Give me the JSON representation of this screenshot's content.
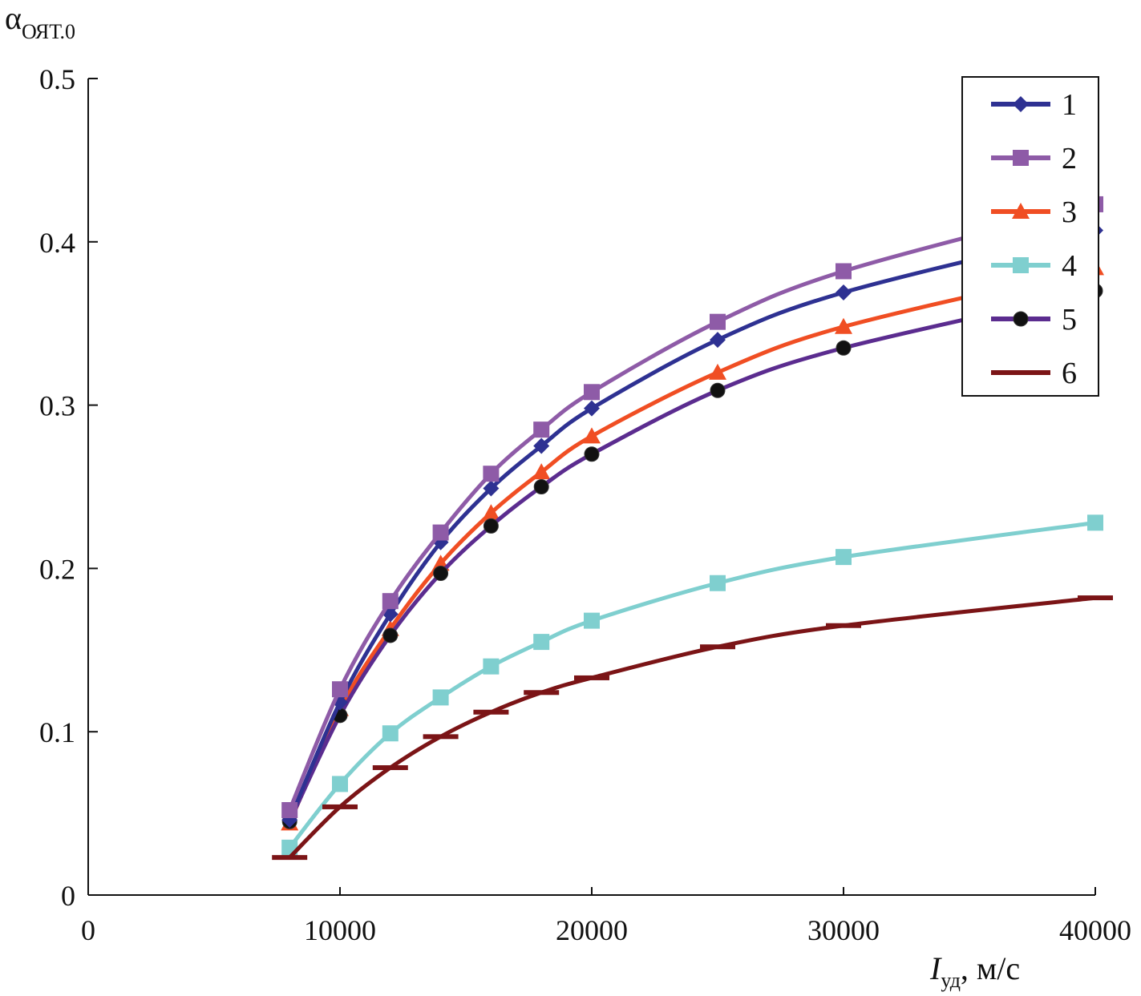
{
  "chart_data": {
    "type": "line",
    "xlabel_main": "I",
    "xlabel_sub": "уд",
    "xlabel_unit": ", м/с",
    "ylabel_main": "α",
    "ylabel_sub": "ОЯТ.0",
    "xlim": [
      0,
      40000
    ],
    "ylim": [
      0,
      0.5
    ],
    "x_ticks": [
      {
        "value": 0,
        "label": "0"
      },
      {
        "value": 10000,
        "label": "10000"
      },
      {
        "value": 20000,
        "label": "20000"
      },
      {
        "value": 30000,
        "label": "30000"
      },
      {
        "value": 40000,
        "label": "40000"
      }
    ],
    "y_ticks": [
      {
        "value": 0,
        "label": "0"
      },
      {
        "value": 0.1,
        "label": "0.1"
      },
      {
        "value": 0.2,
        "label": "0.2"
      },
      {
        "value": 0.3,
        "label": "0.3"
      },
      {
        "value": 0.4,
        "label": "0.4"
      },
      {
        "value": 0.5,
        "label": "0.5"
      }
    ],
    "grid": false,
    "legend_position": "top-right",
    "x": [
      8000,
      10000,
      12000,
      14000,
      16000,
      18000,
      20000,
      25000,
      30000,
      40000
    ],
    "series": [
      {
        "name": "1",
        "color": "#2e3192",
        "marker": "diamond",
        "values": [
          0.046,
          0.118,
          0.172,
          0.216,
          0.249,
          0.275,
          0.298,
          0.34,
          0.369,
          0.407
        ]
      },
      {
        "name": "2",
        "color": "#8e5ba7",
        "marker": "square",
        "values": [
          0.052,
          0.126,
          0.18,
          0.222,
          0.258,
          0.285,
          0.308,
          0.351,
          0.382,
          0.423
        ]
      },
      {
        "name": "3",
        "color": "#f04e23",
        "marker": "triangle",
        "values": [
          0.044,
          0.114,
          0.163,
          0.203,
          0.234,
          0.259,
          0.281,
          0.32,
          0.348,
          0.384
        ]
      },
      {
        "name": "4",
        "color": "#7fcfcf",
        "marker": "square",
        "values": [
          0.029,
          0.068,
          0.099,
          0.121,
          0.14,
          0.155,
          0.168,
          0.191,
          0.207,
          0.228
        ]
      },
      {
        "name": "5",
        "color": "#5b2c8f",
        "marker": "circle",
        "values": [
          0.045,
          0.11,
          0.159,
          0.197,
          0.226,
          0.25,
          0.27,
          0.309,
          0.335,
          0.37
        ]
      },
      {
        "name": "6",
        "color": "#7b1416",
        "marker": "dash",
        "values": [
          0.023,
          0.054,
          0.078,
          0.097,
          0.112,
          0.124,
          0.133,
          0.152,
          0.165,
          0.182
        ]
      }
    ]
  }
}
